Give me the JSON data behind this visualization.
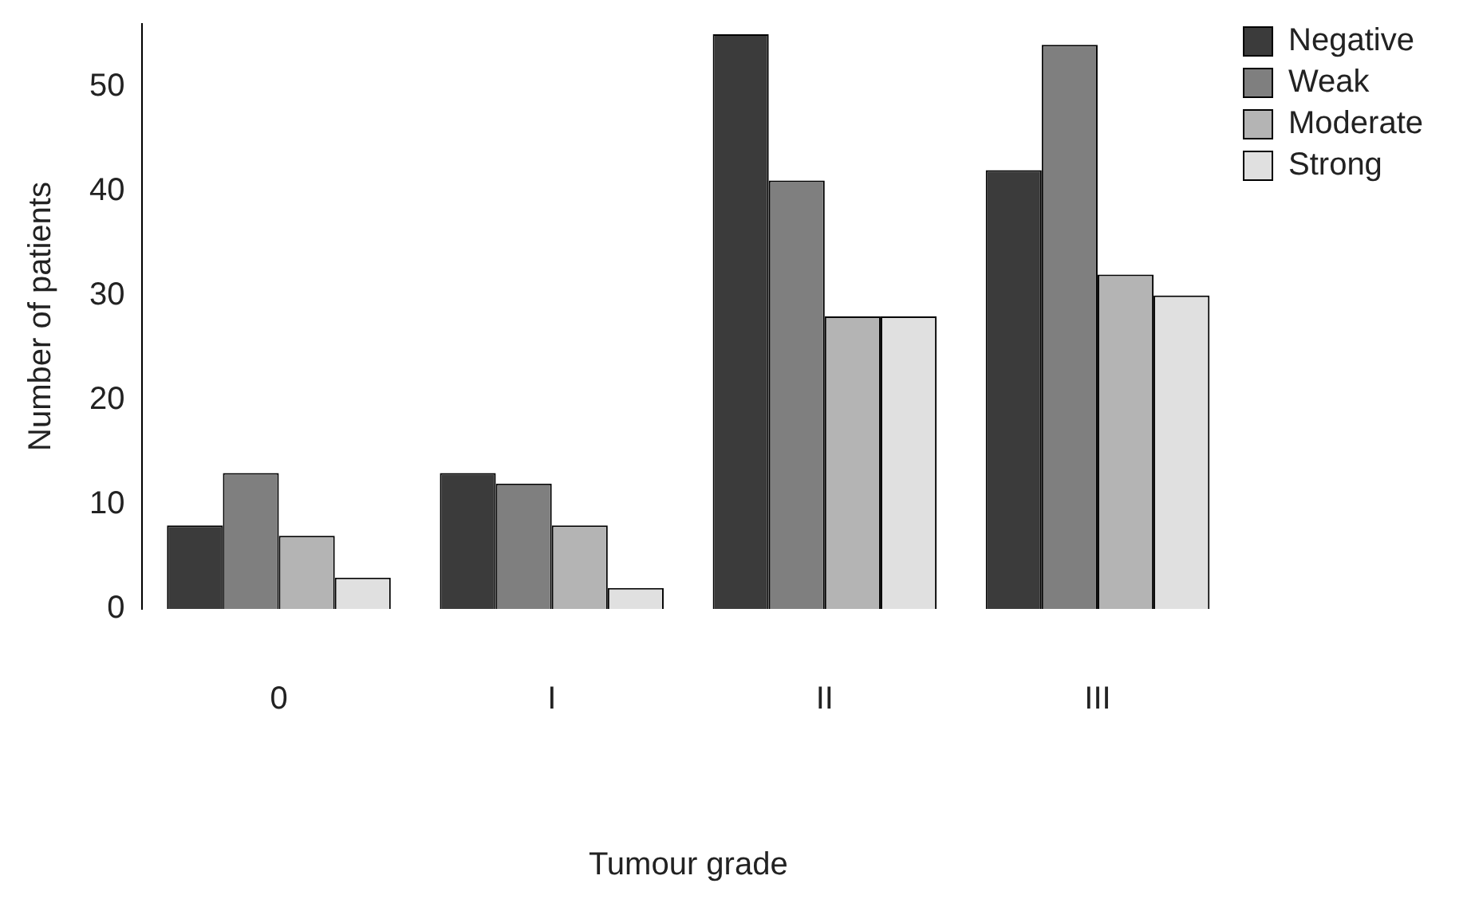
{
  "chart_data": {
    "type": "bar",
    "xlabel": "Tumour grade",
    "ylabel": "Number of patients",
    "categories": [
      "0",
      "I",
      "II",
      "III"
    ],
    "series": [
      {
        "name": "Negative",
        "color": "#3b3b3b",
        "values": [
          8,
          13,
          55,
          42
        ]
      },
      {
        "name": "Weak",
        "color": "#7f7f7f",
        "values": [
          13,
          12,
          41,
          54
        ]
      },
      {
        "name": "Moderate",
        "color": "#b4b4b4",
        "values": [
          7,
          8,
          28,
          32
        ]
      },
      {
        "name": "Strong",
        "color": "#e0e0e0",
        "values": [
          3,
          2,
          28,
          30
        ]
      }
    ],
    "ylim": [
      0,
      56
    ],
    "yticks": [
      0,
      10,
      20,
      30,
      40,
      50
    ],
    "grid": false,
    "legend": "top right"
  }
}
